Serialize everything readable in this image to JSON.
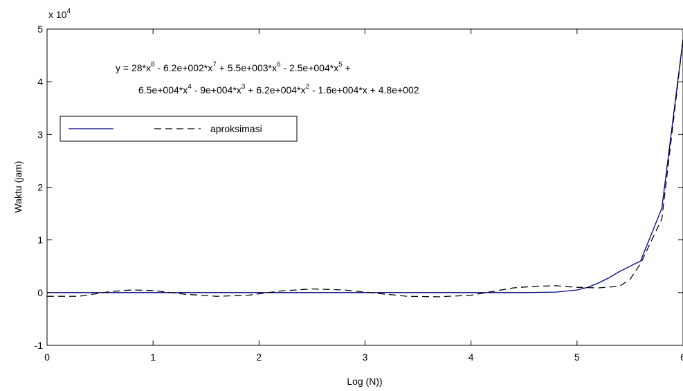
{
  "chart_data": {
    "type": "line",
    "xlabel": "Log (N))",
    "ylabel": "Waktu (jam)",
    "y_exponent_label": "x 10",
    "y_exponent_power": "4",
    "xlim": [
      0,
      6
    ],
    "ylim": [
      -1,
      5
    ],
    "xticks": [
      "0",
      "1",
      "2",
      "3",
      "4",
      "5",
      "6"
    ],
    "yticks": [
      "-1",
      "0",
      "1",
      "2",
      "3",
      "4",
      "5"
    ],
    "grid": false,
    "legend": {
      "placement": "upper-left",
      "entries": [
        "",
        "aproksimasi"
      ]
    },
    "equation": {
      "line1": [
        {
          "t": "y = 28*x"
        },
        {
          "t": "8",
          "sup": true
        },
        {
          "t": " - 6.2e+002*x"
        },
        {
          "t": "7",
          "sup": true
        },
        {
          "t": " + 5.5e+003*x"
        },
        {
          "t": "6",
          "sup": true
        },
        {
          "t": " - 2.5e+004*x"
        },
        {
          "t": "5",
          "sup": true
        },
        {
          "t": " +"
        }
      ],
      "line2": [
        {
          "t": "6.5e+004*x"
        },
        {
          "t": "4",
          "sup": true
        },
        {
          "t": " - 9e+004*x"
        },
        {
          "t": "3",
          "sup": true
        },
        {
          "t": " + 6.2e+004*x"
        },
        {
          "t": "2",
          "sup": true
        },
        {
          "t": " - 1.6e+004*x + 4.8e+002"
        }
      ]
    },
    "series": [
      {
        "name": "",
        "style": "solid",
        "color": "#000080",
        "x": [
          0,
          0.5,
          1,
          1.5,
          2,
          2.5,
          3,
          3.5,
          4,
          4.5,
          4.8,
          5.0,
          5.1,
          5.2,
          5.3,
          5.4,
          5.5,
          5.6,
          5.8,
          6.0
        ],
        "y": [
          0,
          0,
          0,
          0,
          0,
          0,
          0,
          0,
          0,
          0,
          0.01,
          0.05,
          0.1,
          0.18,
          0.28,
          0.4,
          0.5,
          0.6,
          1.6,
          4.8
        ]
      },
      {
        "name": "aproksimasi",
        "style": "dashed",
        "color": "#000000",
        "x": [
          0,
          0.3,
          0.6,
          0.8,
          1.0,
          1.3,
          1.6,
          1.9,
          2.2,
          2.5,
          2.8,
          3.1,
          3.4,
          3.7,
          4.0,
          4.2,
          4.4,
          4.6,
          4.8,
          5.0,
          5.2,
          5.4,
          5.5,
          5.6,
          5.8,
          6.0
        ],
        "y": [
          -0.07,
          -0.07,
          0.02,
          0.05,
          0.04,
          -0.03,
          -0.07,
          -0.05,
          0.03,
          0.07,
          0.05,
          -0.01,
          -0.07,
          -0.08,
          -0.05,
          0.02,
          0.09,
          0.12,
          0.13,
          0.1,
          0.09,
          0.12,
          0.25,
          0.55,
          1.4,
          4.8
        ]
      }
    ]
  }
}
